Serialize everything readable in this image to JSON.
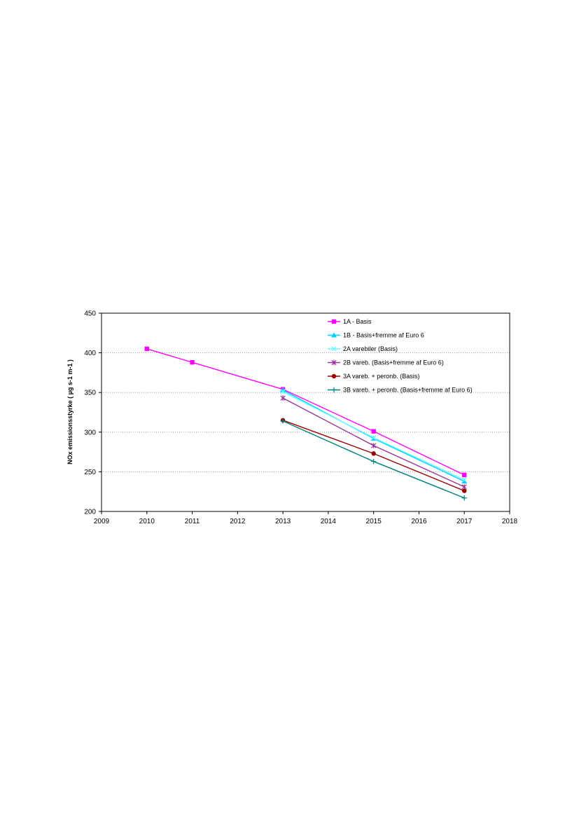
{
  "chart_data": {
    "type": "line",
    "title": "",
    "xlabel": "",
    "ylabel": "NOx emissionsstyrke ( µg s-1 m-1 )",
    "xlim": [
      2009,
      2018
    ],
    "ylim": [
      200,
      450
    ],
    "x_ticks": [
      "2009",
      "2010",
      "2011",
      "2012",
      "2013",
      "2014",
      "2015",
      "2016",
      "2017",
      "2018"
    ],
    "y_ticks": [
      "200",
      "250",
      "300",
      "350",
      "400",
      "450"
    ],
    "grid": "horizontal dotted",
    "legend_position": "top-right",
    "series": [
      {
        "name": "1A - Basis",
        "color": "#ff00ff",
        "marker": "square",
        "x": [
          2010,
          2011,
          2013,
          2015,
          2017
        ],
        "values": [
          405,
          388,
          354,
          301,
          246
        ]
      },
      {
        "name": "1B - Basis+fremme af Euro 6",
        "color": "#00ccff",
        "marker": "triangle",
        "x": [
          2013,
          2015,
          2017
        ],
        "values": [
          353,
          292,
          238
        ]
      },
      {
        "name": "2A varebiler (Basis)",
        "color": "#66ffff",
        "marker": "x",
        "x": [
          2013,
          2015,
          2017
        ],
        "values": [
          351,
          293,
          240
        ]
      },
      {
        "name": "2B vareb. (Basis+fremme af Euro 6)",
        "color": "#993399",
        "marker": "star",
        "x": [
          2013,
          2015,
          2017
        ],
        "values": [
          343,
          283,
          231
        ]
      },
      {
        "name": "3A vareb. + peronb. (Basis)",
        "color": "#990000",
        "marker": "circle",
        "x": [
          2013,
          2015,
          2017
        ],
        "values": [
          315,
          273,
          226
        ]
      },
      {
        "name": "3B vareb. + peronb. (Basis+fremme af Euro 6)",
        "color": "#008080",
        "marker": "plus",
        "x": [
          2013,
          2015,
          2017
        ],
        "values": [
          314,
          263,
          217
        ]
      }
    ]
  }
}
